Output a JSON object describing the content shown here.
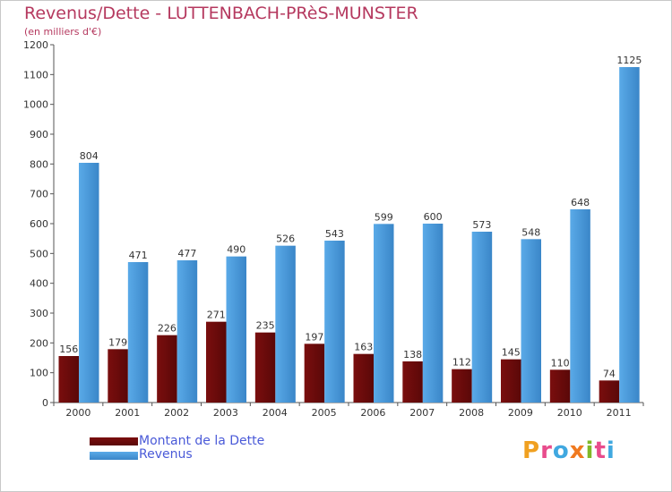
{
  "title": "Revenus/Dette - LUTTENBACH-PRèS-MUNSTER",
  "subtitle": "(en milliers d'€)",
  "legend": {
    "debt_label": "Montant de la Dette",
    "revenue_label": "Revenus"
  },
  "logo": {
    "letters": [
      "P",
      "r",
      "o",
      "x",
      "i",
      "t",
      "i"
    ],
    "colors": [
      "#f0a020",
      "#e84c8c",
      "#40a8e0",
      "#f07a20",
      "#80b828",
      "#e84c8c",
      "#40a8e0"
    ]
  },
  "colors": {
    "debt": "#7a0e0e",
    "debt_light": "#5a0808",
    "revenue": "#5aaae8",
    "revenue_dark": "#3a86c8",
    "accent": "#b5395f",
    "axis_text": "#333333"
  },
  "chart_data": {
    "type": "bar",
    "categories": [
      "2000",
      "2001",
      "2002",
      "2003",
      "2004",
      "2005",
      "2006",
      "2007",
      "2008",
      "2009",
      "2010",
      "2011"
    ],
    "series": [
      {
        "name": "Montant de la Dette",
        "values": [
          156,
          179,
          226,
          271,
          235,
          197,
          163,
          138,
          112,
          145,
          110,
          74
        ]
      },
      {
        "name": "Revenus",
        "values": [
          804,
          471,
          477,
          490,
          526,
          543,
          599,
          600,
          573,
          548,
          648,
          1125
        ]
      }
    ],
    "y_ticks": [
      "0",
      "100",
      "200",
      "300",
      "400",
      "500",
      "600",
      "700",
      "800",
      "900",
      "1000",
      "1100",
      "1200"
    ],
    "ylim": [
      0,
      1200
    ],
    "grid": false,
    "legend_position": "bottom-left"
  }
}
